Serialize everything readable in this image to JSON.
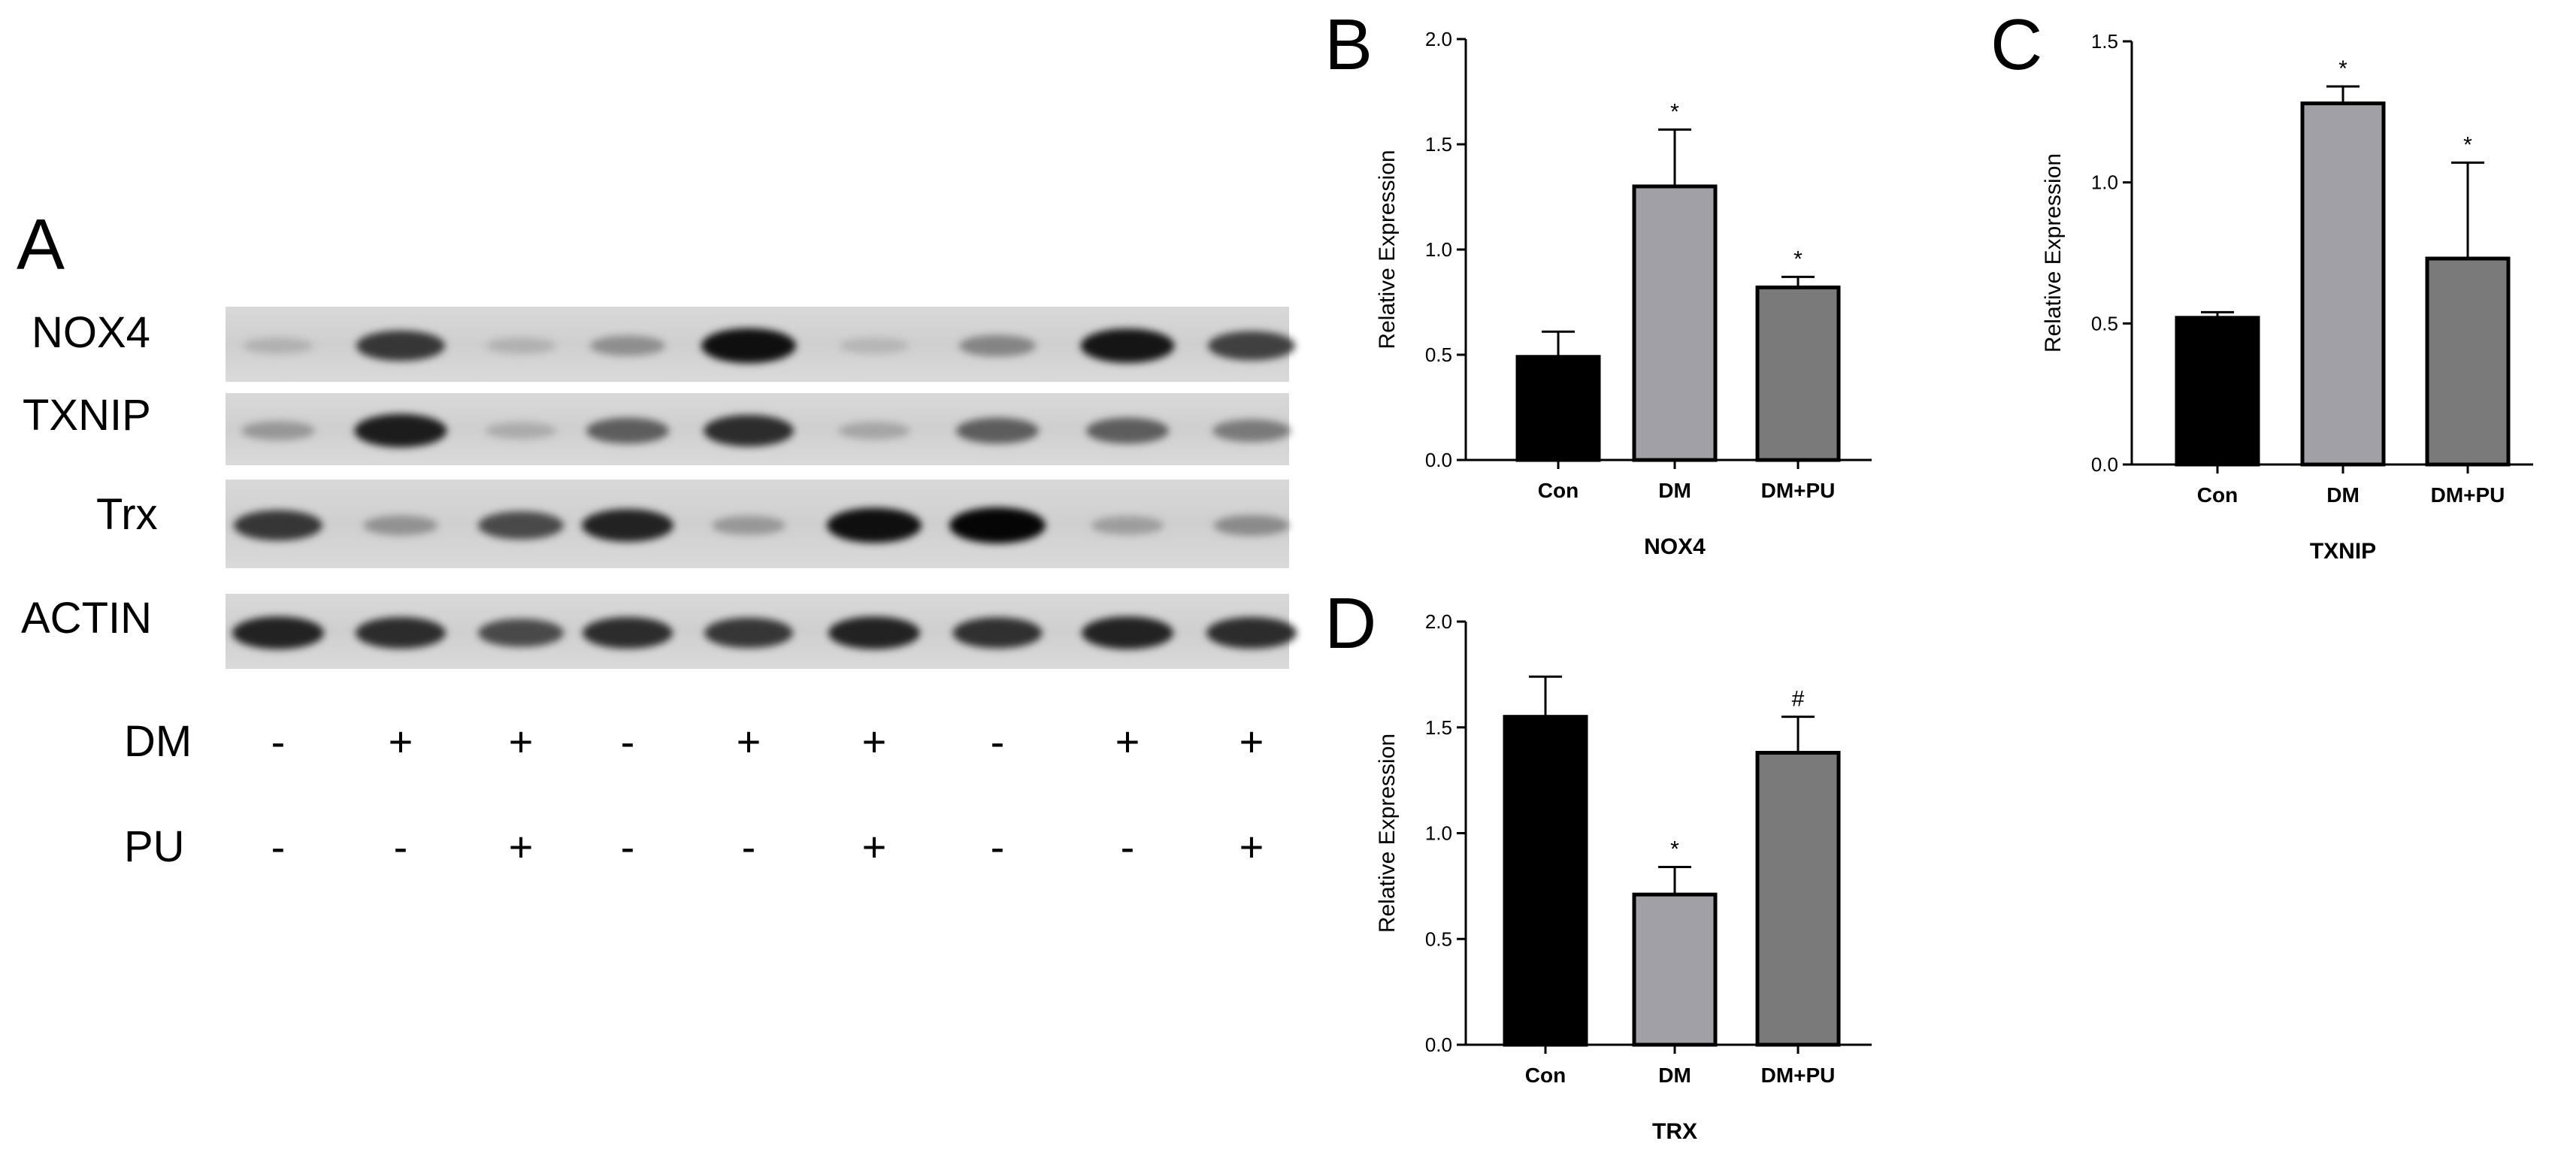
{
  "panels": {
    "A": "A",
    "B": "B",
    "C": "C",
    "D": "D"
  },
  "blot": {
    "rows": [
      {
        "label": "NOX4",
        "intensity": [
          0.12,
          0.75,
          0.12,
          0.3,
          0.95,
          0.1,
          0.35,
          0.92,
          0.7
        ]
      },
      {
        "label": "TXNIP",
        "intensity": [
          0.25,
          0.88,
          0.15,
          0.55,
          0.8,
          0.18,
          0.55,
          0.55,
          0.4
        ]
      },
      {
        "label": "Trx",
        "intensity": [
          0.75,
          0.28,
          0.65,
          0.85,
          0.25,
          0.95,
          1.0,
          0.22,
          0.32
        ]
      },
      {
        "label": "ACTIN",
        "intensity": [
          0.85,
          0.8,
          0.65,
          0.8,
          0.75,
          0.85,
          0.78,
          0.85,
          0.8
        ]
      }
    ],
    "conditions": [
      {
        "label": "DM",
        "signs": [
          "-",
          "+",
          "+",
          "-",
          "+",
          "+",
          "-",
          "+",
          "+"
        ]
      },
      {
        "label": "PU",
        "signs": [
          "-",
          "-",
          "+",
          "-",
          "-",
          "+",
          "-",
          "-",
          "+"
        ]
      }
    ]
  },
  "chart_data": [
    {
      "panel": "B",
      "type": "bar",
      "categories": [
        "Con",
        "DM",
        "DM+PU"
      ],
      "values": [
        0.49,
        1.3,
        0.82
      ],
      "errors": [
        0.12,
        0.27,
        0.05
      ],
      "annotations": [
        "",
        "*",
        "*"
      ],
      "bar_colors": [
        "#000000",
        "#a0a0a6",
        "#7a7a7a"
      ],
      "xlabel": "NOX4",
      "ylabel": "Relative Expression",
      "ylim": [
        0,
        2.0
      ],
      "yticks": [
        "0.0",
        "0.5",
        "1.0",
        "1.5",
        "2.0"
      ]
    },
    {
      "panel": "C",
      "type": "bar",
      "categories": [
        "Con",
        "DM",
        "DM+PU"
      ],
      "values": [
        0.52,
        1.28,
        0.73
      ],
      "errors": [
        0.02,
        0.06,
        0.34
      ],
      "annotations": [
        "",
        "*",
        "*"
      ],
      "bar_colors": [
        "#000000",
        "#a0a0a6",
        "#7a7a7a"
      ],
      "xlabel": "TXNIP",
      "ylabel": "Relative Expression",
      "ylim": [
        0,
        1.5
      ],
      "yticks": [
        "0.0",
        "0.5",
        "1.0",
        "1.5"
      ]
    },
    {
      "panel": "D",
      "type": "bar",
      "categories": [
        "Con",
        "DM",
        "DM+PU"
      ],
      "values": [
        1.55,
        0.71,
        1.38
      ],
      "errors": [
        0.19,
        0.13,
        0.17
      ],
      "annotations": [
        "",
        "*",
        "#"
      ],
      "bar_colors": [
        "#000000",
        "#a0a0a6",
        "#7a7a7a"
      ],
      "xlabel": "TRX",
      "ylabel": "Relative Expression",
      "ylim": [
        0,
        2.0
      ],
      "yticks": [
        "0.0",
        "0.5",
        "1.0",
        "1.5",
        "2.0"
      ]
    }
  ]
}
